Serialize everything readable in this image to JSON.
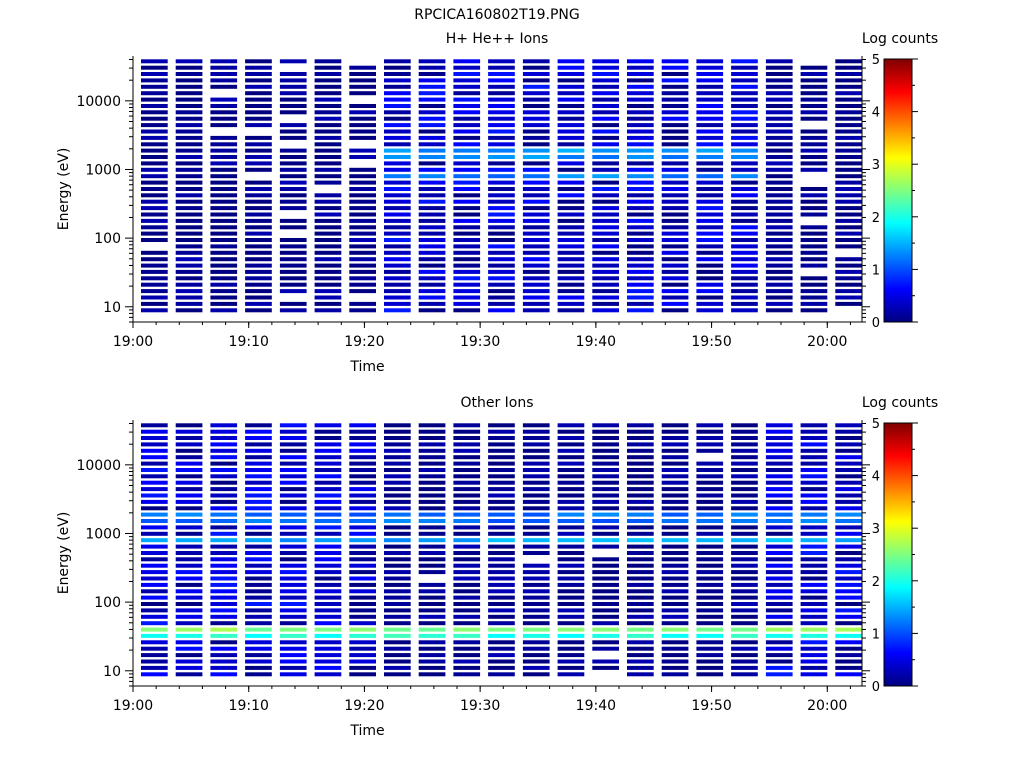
{
  "figure_title": "RPCICA160802T19.PNG",
  "chart_data": [
    {
      "type": "heatmap",
      "title": "H+ He++ Ions",
      "xlabel": "Time",
      "ylabel": "Energy (eV)",
      "x_ticks": [
        "19:00",
        "19:10",
        "19:20",
        "19:30",
        "19:40",
        "19:50",
        "20:00"
      ],
      "x_range": [
        "19:00",
        "20:03"
      ],
      "y_scale": "log",
      "y_ticks": [
        "10",
        "100",
        "1000",
        "10000"
      ],
      "y_range": [
        6,
        45000
      ],
      "colorbar": {
        "label": "Log counts",
        "range": [
          0,
          5
        ],
        "ticks": [
          "0",
          "1",
          "2",
          "3",
          "4",
          "5"
        ]
      },
      "time_bins": [
        "19:00",
        "19:03",
        "19:06",
        "19:09",
        "19:12",
        "19:15",
        "19:18",
        "19:21",
        "19:24",
        "19:27",
        "19:30",
        "19:33",
        "19:36",
        "19:39",
        "19:42",
        "19:45",
        "19:48",
        "19:51",
        "19:54",
        "19:57",
        "20:00"
      ],
      "dense_interval": [
        "19:20",
        "19:55"
      ],
      "features": [
        {
          "energy_eV": 1700,
          "log_counts": 1.6,
          "interval": [
            "19:20",
            "19:55"
          ]
        },
        {
          "energy_eV": 850,
          "log_counts": 1.5,
          "interval": [
            "19:20",
            "19:55"
          ]
        }
      ]
    },
    {
      "type": "heatmap",
      "title": "Other Ions",
      "xlabel": "Time",
      "ylabel": "Energy (eV)",
      "x_ticks": [
        "19:00",
        "19:10",
        "19:20",
        "19:30",
        "19:40",
        "19:50",
        "20:00"
      ],
      "x_range": [
        "19:00",
        "20:03"
      ],
      "y_scale": "log",
      "y_ticks": [
        "10",
        "100",
        "1000",
        "10000"
      ],
      "y_range": [
        6,
        45000
      ],
      "colorbar": {
        "label": "Log counts",
        "range": [
          0,
          5
        ],
        "ticks": [
          "0",
          "1",
          "2",
          "3",
          "4",
          "5"
        ]
      },
      "time_bins": [
        "19:00",
        "19:03",
        "19:06",
        "19:09",
        "19:12",
        "19:15",
        "19:18",
        "19:21",
        "19:24",
        "19:27",
        "19:30",
        "19:33",
        "19:36",
        "19:39",
        "19:42",
        "19:45",
        "19:48",
        "19:51",
        "19:54",
        "19:57",
        "20:00"
      ],
      "dense_intervals": [
        [
          "19:00",
          "19:20"
        ],
        [
          "19:55",
          "20:03"
        ]
      ],
      "features": [
        {
          "energy_eV": 1700,
          "log_counts": 1.4,
          "interval": [
            "19:00",
            "20:03"
          ]
        },
        {
          "energy_eV": 850,
          "log_counts": 1.7,
          "interval": [
            "19:00",
            "20:03"
          ]
        },
        {
          "energy_eV": 40,
          "log_counts": 2.8,
          "interval": [
            "19:00",
            "20:03"
          ]
        },
        {
          "energy_eV": 32,
          "log_counts": 2.3,
          "interval": [
            "19:00",
            "20:03"
          ]
        }
      ]
    }
  ]
}
